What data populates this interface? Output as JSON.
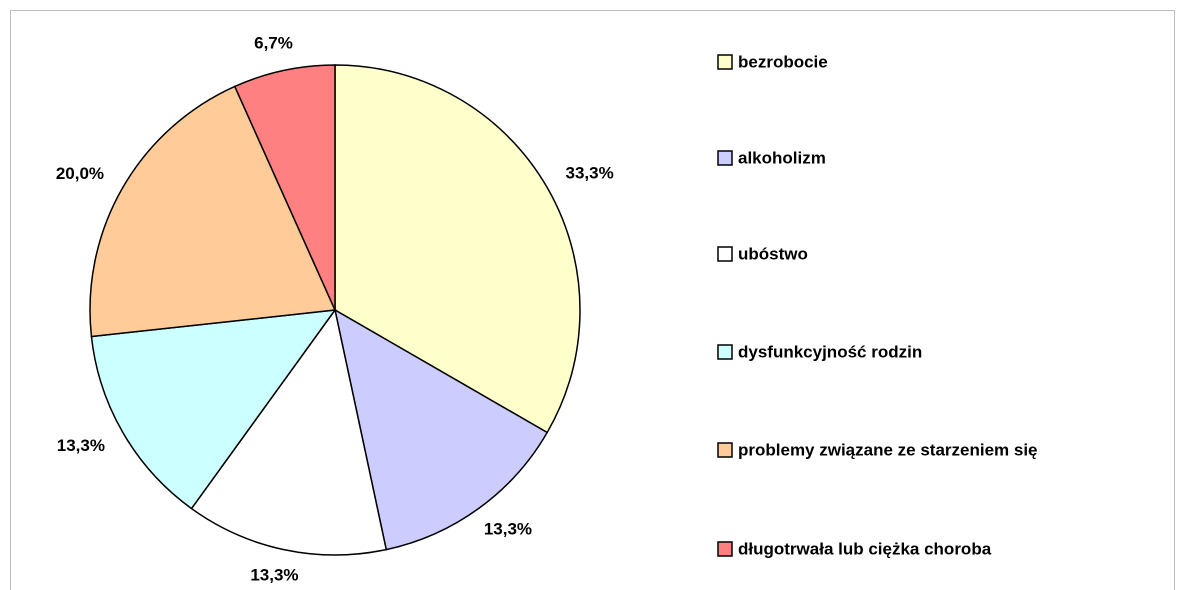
{
  "chart_data": {
    "type": "pie",
    "categories": [
      "bezrobocie",
      "alkoholizm",
      "ubóstwo",
      "dysfunkcyjność rodzin",
      "problemy związane ze starzeniem się",
      "długotrwała lub ciężka choroba"
    ],
    "values": [
      33.3,
      13.3,
      13.3,
      13.3,
      20.0,
      6.7
    ],
    "value_labels": [
      "33,3%",
      "13,3%",
      "13,3%",
      "13,3%",
      "20,0%",
      "6,7%"
    ],
    "colors": [
      "#ffffcc",
      "#ccccff",
      "#ffffff",
      "#ccffff",
      "#ffcc99",
      "#ff8080"
    ],
    "legend": "right"
  }
}
